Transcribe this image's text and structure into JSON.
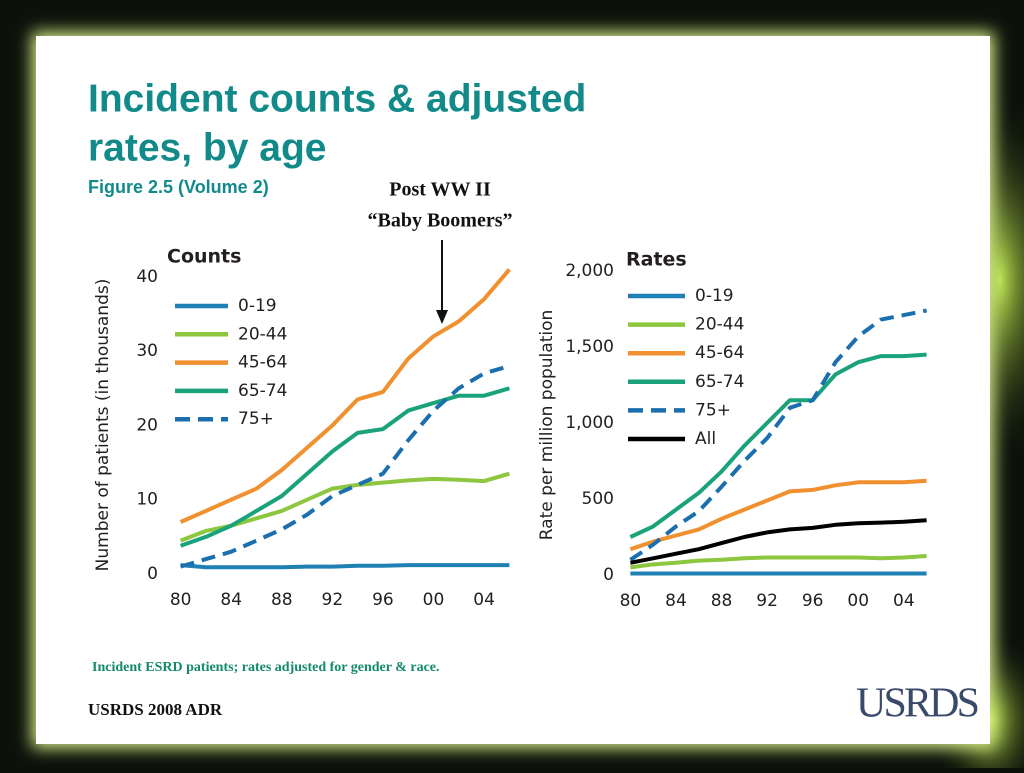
{
  "slide": {
    "title": "Incident counts & adjusted rates, by age",
    "subtitle": "Figure 2.5 (Volume 2)",
    "annotation_line1": "Post WW II",
    "annotation_line2": "“Baby Boomers”",
    "footnote": "Incident ESRD patients; rates adjusted for gender & race.",
    "footer": "USRDS 2008 ADR",
    "logo": "USRDS"
  },
  "chart_data": [
    {
      "type": "line",
      "title": "Counts",
      "y_label": "Number of patients (in thousands)",
      "x": [
        1980,
        1982,
        1984,
        1986,
        1988,
        1990,
        1992,
        1994,
        1996,
        1998,
        2000,
        2002,
        2004,
        2006
      ],
      "xlim": [
        1979,
        2007
      ],
      "xticks": [
        {
          "value": 1980,
          "label": "80"
        },
        {
          "value": 1984,
          "label": "84"
        },
        {
          "value": 1988,
          "label": "88"
        },
        {
          "value": 1992,
          "label": "92"
        },
        {
          "value": 1996,
          "label": "96"
        },
        {
          "value": 2000,
          "label": "00"
        },
        {
          "value": 2004,
          "label": "04"
        }
      ],
      "ylim": [
        0,
        42
      ],
      "yticks": [
        0,
        10,
        20,
        30,
        40
      ],
      "grid": false,
      "series": [
        {
          "name": "0-19",
          "color": "#1f80b3",
          "dashed": false,
          "values": [
            1.2,
            0.9,
            0.9,
            0.9,
            0.9,
            1,
            1,
            1.1,
            1.1,
            1.2,
            1.2,
            1.2,
            1.2,
            1.2
          ]
        },
        {
          "name": "20-44",
          "color": "#8dc63f",
          "dashed": false,
          "values": [
            4.5,
            5.8,
            6.5,
            7.5,
            8.5,
            10,
            11.5,
            12,
            12.3,
            12.6,
            12.8,
            12.7,
            12.5,
            13.5
          ]
        },
        {
          "name": "45-64",
          "color": "#f0902f",
          "dashed": false,
          "values": [
            7,
            8.5,
            10,
            11.5,
            14,
            17,
            20,
            23.5,
            24.5,
            29,
            32,
            34,
            37,
            41
          ]
        },
        {
          "name": "65-74",
          "color": "#1aa37a",
          "dashed": false,
          "values": [
            3.8,
            5,
            6.5,
            8.5,
            10.5,
            13.5,
            16.5,
            19,
            19.5,
            22,
            23,
            24,
            24,
            25
          ]
        },
        {
          "name": "75+",
          "color": "#1c6fae",
          "dashed": true,
          "values": [
            1,
            2,
            3,
            4.5,
            6,
            8,
            10.5,
            12,
            13.5,
            18,
            22,
            25,
            27,
            28
          ]
        }
      ]
    },
    {
      "type": "line",
      "title": "Rates",
      "y_label": "Rate per million population",
      "x": [
        1980,
        1982,
        1984,
        1986,
        1988,
        1990,
        1992,
        1994,
        1996,
        1998,
        2000,
        2002,
        2004,
        2006
      ],
      "xlim": [
        1979,
        2007
      ],
      "xticks": [
        {
          "value": 1980,
          "label": "80"
        },
        {
          "value": 1984,
          "label": "84"
        },
        {
          "value": 1988,
          "label": "88"
        },
        {
          "value": 1992,
          "label": "92"
        },
        {
          "value": 1996,
          "label": "96"
        },
        {
          "value": 2000,
          "label": "00"
        },
        {
          "value": 2004,
          "label": "04"
        }
      ],
      "ylim": [
        0,
        2000
      ],
      "yticks": [
        0,
        500,
        {
          "value": 1000,
          "label": "1,000"
        },
        {
          "value": 1500,
          "label": "1,500"
        },
        {
          "value": 2000,
          "label": "2,000"
        }
      ],
      "grid": false,
      "series": [
        {
          "name": "0-19",
          "color": "#1f80b3",
          "dashed": false,
          "values": [
            10,
            10,
            10,
            10,
            10,
            10,
            10,
            10,
            10,
            10,
            10,
            10,
            10,
            10
          ]
        },
        {
          "name": "20-44",
          "color": "#8dc63f",
          "dashed": false,
          "values": [
            50,
            70,
            80,
            95,
            100,
            110,
            115,
            115,
            115,
            115,
            115,
            110,
            115,
            125
          ]
        },
        {
          "name": "45-64",
          "color": "#f0902f",
          "dashed": false,
          "values": [
            170,
            220,
            260,
            300,
            370,
            430,
            490,
            550,
            560,
            590,
            610,
            610,
            610,
            620
          ]
        },
        {
          "name": "65-74",
          "color": "#1aa37a",
          "dashed": false,
          "values": [
            250,
            320,
            430,
            540,
            680,
            850,
            1000,
            1150,
            1150,
            1320,
            1400,
            1440,
            1440,
            1450
          ]
        },
        {
          "name": "75+",
          "color": "#1c6fae",
          "dashed": true,
          "values": [
            100,
            200,
            320,
            420,
            580,
            750,
            900,
            1100,
            1150,
            1400,
            1570,
            1680,
            1710,
            1740
          ]
        },
        {
          "name": "All",
          "color": "#000000",
          "dashed": false,
          "values": [
            80,
            110,
            140,
            170,
            210,
            250,
            280,
            300,
            310,
            330,
            340,
            345,
            350,
            360
          ]
        }
      ]
    }
  ]
}
